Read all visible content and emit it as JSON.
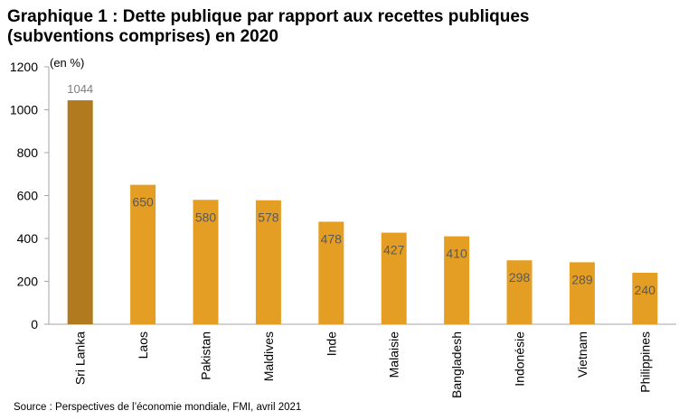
{
  "title_line1": "Graphique 1 : Dette publique par rapport aux recettes publiques",
  "title_line2": "(subventions comprises) en 2020",
  "source": "Source : Perspectives de l’économie mondiale, FMI, avril 2021",
  "colors": {
    "highlight": "#b17a1e",
    "default": "#e49e23",
    "axis": "#a6a6a6"
  },
  "chart_data": {
    "type": "bar",
    "title": "Graphique 1 : Dette publique par rapport aux recettes publiques (subventions comprises) en 2020",
    "ylabel": "(en %)",
    "xlabel": "",
    "ylim": [
      0,
      1200
    ],
    "yticks": [
      0,
      200,
      400,
      600,
      800,
      1000,
      1200
    ],
    "grid": false,
    "categories": [
      "Sri Lanka",
      "Laos",
      "Pakistan",
      "Maldives",
      "Inde",
      "Malaisie",
      "Bangladesh",
      "Indonésie",
      "Vietnam",
      "Philippines"
    ],
    "values": [
      1044,
      650,
      580,
      578,
      478,
      427,
      410,
      298,
      289,
      240
    ],
    "highlighted_category": "Sri Lanka"
  }
}
